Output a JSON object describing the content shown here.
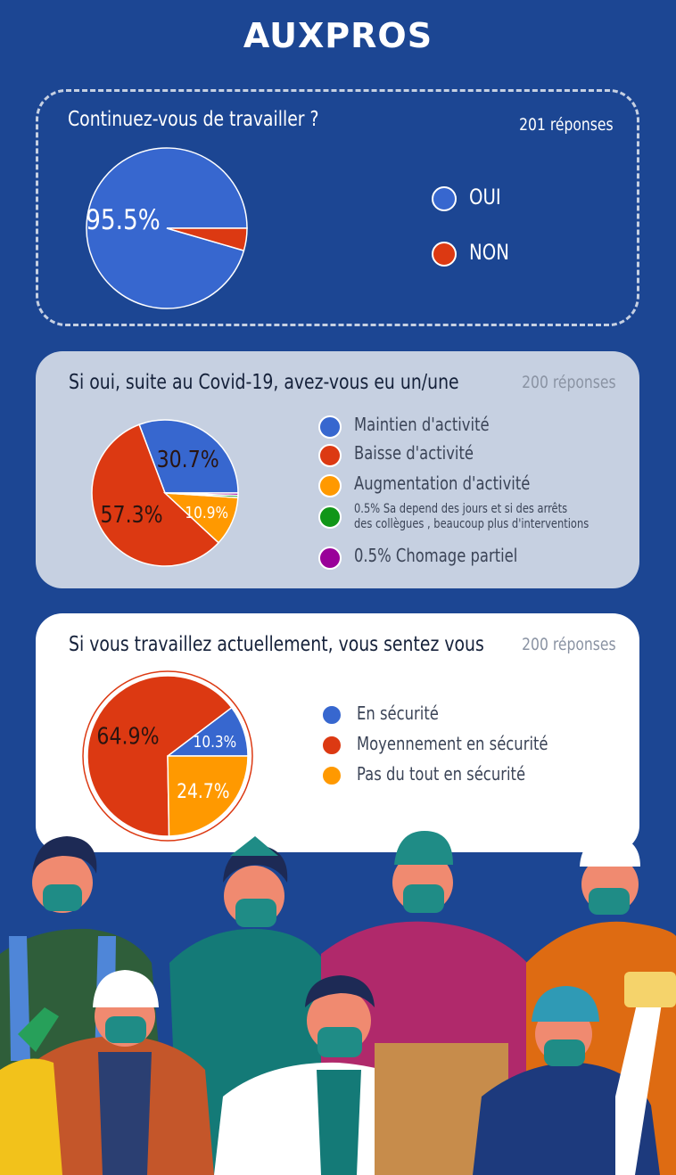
{
  "logo": {
    "text": "AUXPROS"
  },
  "chart_data": [
    {
      "type": "pie",
      "title": "Continuez-vous de travailler ?",
      "responses": "201  réponses",
      "slices": [
        {
          "label": "OUI",
          "value": 95.5,
          "display": "95.5%",
          "color": "#3767cf"
        },
        {
          "label": "NON",
          "value": 4.5,
          "display": "",
          "color": "#dc3912"
        }
      ]
    },
    {
      "type": "pie",
      "title": "Si oui, suite au Covid-19, avez-vous eu un/une",
      "responses": "200  réponses",
      "slices": [
        {
          "label": "Maintien d'activité",
          "value": 30.7,
          "display": "30.7%",
          "color": "#3767cf"
        },
        {
          "label": "Baisse d'activité",
          "value": 57.3,
          "display": "57.3%",
          "color": "#dc3912"
        },
        {
          "label": "Augmentation d'activité",
          "value": 10.9,
          "display": "10.9%",
          "color": "#ff9900"
        },
        {
          "label": "0.5%  Sa depend des jours et si des arrêts",
          "label2": "des collègues , beaucoup plus d'interventions",
          "value": 0.5,
          "display": "",
          "color": "#109618"
        },
        {
          "label": "0.5% Chomage partiel",
          "value": 0.5,
          "display": "",
          "color": "#990099"
        }
      ]
    },
    {
      "type": "pie",
      "title": "Si vous travaillez actuellement, vous sentez vous",
      "responses": "200  réponses",
      "slices": [
        {
          "label": "En sécurité",
          "value": 10.3,
          "display": "10.3%",
          "color": "#3767cf"
        },
        {
          "label": "Moyennement en sécurité",
          "value": 64.9,
          "display": "64.9%",
          "color": "#dc3912"
        },
        {
          "label": "Pas du tout en sécurité",
          "value": 24.7,
          "display": "24.7%",
          "color": "#ff9900"
        }
      ]
    }
  ]
}
